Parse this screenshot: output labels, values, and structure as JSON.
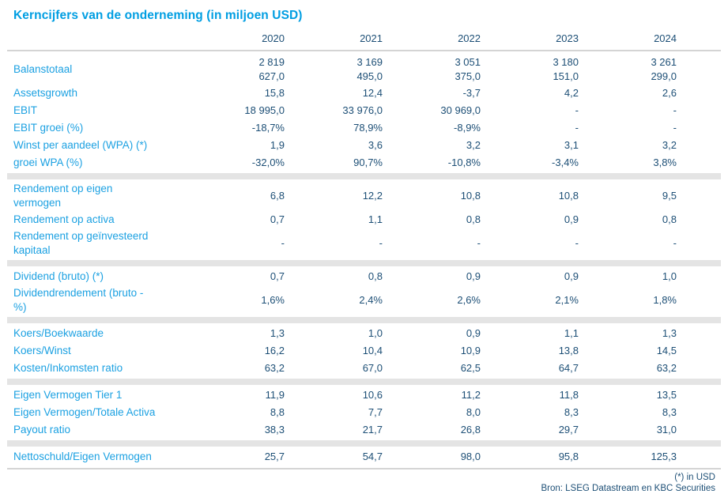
{
  "title": "Kerncijfers van de onderneming (in miljoen USD)",
  "colors": {
    "accent_blue": "#009ee2",
    "value_navy": "#1d4f76",
    "separator_gray": "#e4e4e4",
    "rule_gray": "#d4d4d4"
  },
  "table": {
    "year_headers": [
      "2020",
      "2021",
      "2022",
      "2023",
      "2024"
    ],
    "sections": [
      {
        "rows": [
          {
            "label": "Balanstotaal",
            "values": [
              "2 819\n627,0",
              "3 169\n495,0",
              "3 051\n375,0",
              "3 180\n151,0",
              "3 261\n299,0"
            ]
          },
          {
            "label": "Assetsgrowth",
            "values": [
              "15,8",
              "12,4",
              "-3,7",
              "4,2",
              "2,6"
            ]
          },
          {
            "label": "EBIT",
            "values": [
              "18 995,0",
              "33 976,0",
              "30 969,0",
              "-",
              "-"
            ]
          },
          {
            "label": "EBIT groei (%)",
            "values": [
              "-18,7%",
              "78,9%",
              "-8,9%",
              "-",
              "-"
            ]
          },
          {
            "label": "Winst per aandeel (WPA) (*)",
            "values": [
              "1,9",
              "3,6",
              "3,2",
              "3,1",
              "3,2"
            ]
          },
          {
            "label": "groei WPA (%)",
            "values": [
              "-32,0%",
              "90,7%",
              "-10,8%",
              "-3,4%",
              "3,8%"
            ]
          }
        ]
      },
      {
        "rows": [
          {
            "label": "Rendement op eigen\nvermogen",
            "values": [
              "6,8",
              "12,2",
              "10,8",
              "10,8",
              "9,5"
            ]
          },
          {
            "label": "Rendement op activa",
            "values": [
              "0,7",
              "1,1",
              "0,8",
              "0,9",
              "0,8"
            ]
          },
          {
            "label": "Rendement op geïnvesteerd\nkapitaal",
            "values": [
              "-",
              "-",
              "-",
              "-",
              "-"
            ]
          }
        ]
      },
      {
        "rows": [
          {
            "label": "Dividend (bruto) (*)",
            "values": [
              "0,7",
              "0,8",
              "0,9",
              "0,9",
              "1,0"
            ]
          },
          {
            "label": "Dividendrendement (bruto -\n%)",
            "values": [
              "1,6%",
              "2,4%",
              "2,6%",
              "2,1%",
              "1,8%"
            ]
          }
        ]
      },
      {
        "rows": [
          {
            "label": "Koers/Boekwaarde",
            "values": [
              "1,3",
              "1,0",
              "0,9",
              "1,1",
              "1,3"
            ]
          },
          {
            "label": "Koers/Winst",
            "values": [
              "16,2",
              "10,4",
              "10,9",
              "13,8",
              "14,5"
            ]
          },
          {
            "label": "Kosten/Inkomsten ratio",
            "values": [
              "63,2",
              "67,0",
              "62,5",
              "64,7",
              "63,2"
            ]
          }
        ]
      },
      {
        "rows": [
          {
            "label": "Eigen Vermogen Tier 1",
            "values": [
              "11,9",
              "10,6",
              "11,2",
              "11,8",
              "13,5"
            ]
          },
          {
            "label": "Eigen Vermogen/Totale Activa",
            "values": [
              "8,8",
              "7,7",
              "8,0",
              "8,3",
              "8,3"
            ]
          },
          {
            "label": "Payout ratio",
            "values": [
              "38,3",
              "21,7",
              "26,8",
              "29,7",
              "31,0"
            ]
          }
        ]
      },
      {
        "rows": [
          {
            "label": "Nettoschuld/Eigen Vermogen",
            "values": [
              "25,7",
              "54,7",
              "98,0",
              "95,8",
              "125,3"
            ]
          }
        ]
      }
    ]
  },
  "footer": {
    "note": "(*) in USD",
    "source": "Bron: LSEG Datastream en KBC Securities"
  }
}
